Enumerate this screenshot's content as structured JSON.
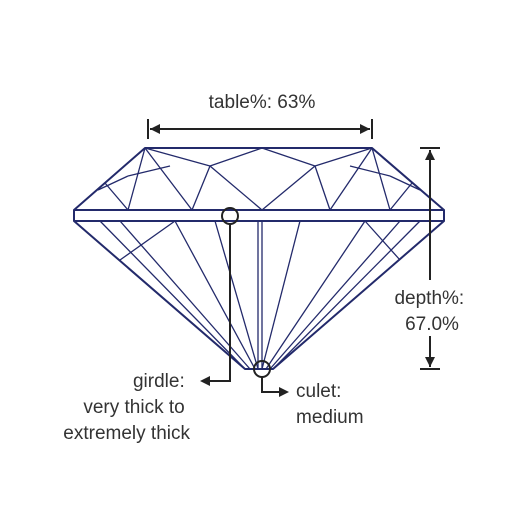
{
  "diagram": {
    "table_label": "table%: 63%",
    "depth_label": [
      "depth%:",
      "67.0%"
    ],
    "girdle_label": [
      "girdle:",
      "very thick to",
      "extremely thick"
    ],
    "culet_label": [
      "culet:",
      "medium"
    ],
    "colors": {
      "stone_outline": "#232a6b",
      "annotation": "#222222",
      "text": "#333333",
      "background": "#ffffff"
    }
  }
}
